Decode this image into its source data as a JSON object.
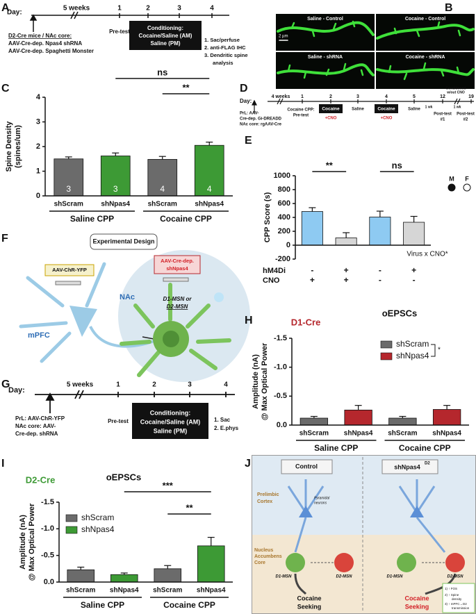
{
  "panel_labels": [
    "A",
    "B",
    "C",
    "D",
    "E",
    "F",
    "G",
    "H",
    "I",
    "J"
  ],
  "diagrams": {
    "A": [
      "Day:",
      "5 weeks",
      "1",
      "2",
      "3",
      "4",
      "D2-Cre mice / NAc core:",
      "AAV-Cre-dep. Npas4 shRNA",
      "AAV-Cre-dep. Spaghetti Monster",
      "Pre-test",
      "Conditioning:",
      "Cocaine/Saline (AM)",
      "Saline (PM)",
      "1. Sac/perfuse",
      "2. anti-FLAG IHC",
      "3. Dendritic spine",
      "analysis"
    ],
    "B": [
      "Saline - Control",
      "Cocaine - Control",
      "Saline - shRNA",
      "Cocaine - shRNA",
      "2 µm"
    ],
    "D": [
      "Day:",
      "4 weeks",
      "1",
      "2",
      "3",
      "4",
      "5",
      "12",
      "19",
      "PrL: AAV-",
      "Cre-dep. Gi-DREADD",
      "NAc core: rgAAV-Cre",
      "Cocaine CPP:",
      "Pre-test",
      "Cocaine",
      "+CNO",
      "Saline",
      "Cocaine",
      "+CNO",
      "Saline",
      "1 wk",
      "Post-test",
      "#1",
      "Conditioned",
      "w/out CNO",
      "1 wk",
      "Post-test",
      "#2"
    ],
    "F": [
      "Experimental Design",
      "AAV-ChR-YFP",
      "mPFC",
      "AAV-Cre-dep.",
      "shNpas4",
      "NAc",
      "D1-MSN or",
      "D2-MSN"
    ],
    "G": [
      "Day:",
      "5 weeks",
      "1",
      "2",
      "3",
      "4",
      "PrL: AAV-ChR-YFP",
      "NAc core: AAV-",
      "Cre-dep. shRNA",
      "Pre-test",
      "Conditioning:",
      "Cocaine/Saline (AM)",
      "Saline (PM)",
      "1. Sac",
      "2. E.phys"
    ],
    "J": [
      "Control",
      "shNpas4",
      "D2",
      "Prelimbic",
      "Cortex",
      "Pyramidal",
      "neurons",
      "Nucleus",
      "Accumbens",
      "Core",
      "D1-MSN",
      "D2-MSN",
      "D1-MSN",
      "D2-MSN",
      "Cocaine",
      "Seeking",
      "Cocaine",
      "Seeking",
      "1) ↑ FOS",
      "2) ↑ Spine",
      "density",
      "3) ↑ mPFC→D2",
      "transmission"
    ]
  },
  "chart_data": [
    {
      "type": "bar",
      "ylabel": [
        "Spine Density",
        "(spines/um)"
      ],
      "categories": [
        "shScram",
        "shNpas4",
        "shScram",
        "shNpas4"
      ],
      "groups": [
        "Saline CPP",
        "Cocaine CPP"
      ],
      "values": [
        1.5,
        1.62,
        1.48,
        2.05
      ],
      "errors": [
        0.08,
        0.12,
        0.12,
        0.13
      ],
      "colors": [
        "#6b6b6b",
        "#3d9a35",
        "#6b6b6b",
        "#3d9a35"
      ],
      "bar_labels": [
        "3",
        "3",
        "4",
        "4"
      ],
      "ylim": [
        0,
        4
      ],
      "yticks": [
        0,
        1,
        2,
        3,
        4
      ],
      "annotations": [
        "ns",
        "**"
      ]
    },
    {
      "type": "bar",
      "ylabel": "CPP Score (s)",
      "values": [
        485,
        105,
        405,
        330
      ],
      "errors": [
        55,
        75,
        85,
        85
      ],
      "colors": [
        "#8ecaf2",
        "#d6d6d6",
        "#8ecaf2",
        "#d6d6d6"
      ],
      "ylim": [
        -200,
        1000
      ],
      "yticks": [
        -200,
        0,
        200,
        400,
        600,
        800,
        1000
      ],
      "conditions": [
        {
          "name": "hM4Di",
          "values": [
            "-",
            "+",
            "-",
            "+"
          ]
        },
        {
          "name": "CNO",
          "values": [
            "+",
            "+",
            "-",
            "-"
          ]
        }
      ],
      "legend": [
        "M",
        "F"
      ],
      "annotations": [
        "**",
        "ns",
        "Virus x CNO*"
      ]
    },
    {
      "type": "bar",
      "title": "oEPSCs",
      "subtitle": "D1-Cre",
      "subtitle_color": "#b5272d",
      "ylabel": [
        "Amplitude (nA)",
        "@ Max Optical Power"
      ],
      "categories": [
        "shScram",
        "shNpas4",
        "shScram",
        "shNpas4"
      ],
      "groups": [
        "Saline CPP",
        "Cocaine CPP"
      ],
      "values": [
        -0.12,
        -0.26,
        -0.12,
        -0.27
      ],
      "errors": [
        0.03,
        0.08,
        0.03,
        0.07
      ],
      "colors": [
        "#6b6b6b",
        "#b5272d",
        "#6b6b6b",
        "#b5272d"
      ],
      "legend": [
        {
          "name": "shScram",
          "color": "#6b6b6b"
        },
        {
          "name": "shNpas4",
          "color": "#b5272d"
        }
      ],
      "ylim": [
        0,
        -1.5
      ],
      "yticks": [
        {
          "value": 0,
          "label": "0.0"
        },
        -0.5,
        {
          "value": -1,
          "label": "-1.0"
        },
        -1.5
      ],
      "annotations": [
        "*"
      ]
    },
    {
      "type": "bar",
      "title": "oEPSCs",
      "subtitle": "D2-Cre",
      "subtitle_color": "#3d9a35",
      "ylabel": [
        "Amplitude (nA)",
        "@ Max Optical Power"
      ],
      "categories": [
        "shScram",
        "shNpas4",
        "shScram",
        "shNpas4"
      ],
      "groups": [
        "Saline CPP",
        "Cocaine CPP"
      ],
      "values": [
        -0.23,
        -0.14,
        -0.25,
        -0.68
      ],
      "errors": [
        0.05,
        0.03,
        0.06,
        0.16
      ],
      "colors": [
        "#6b6b6b",
        "#3d9a35",
        "#6b6b6b",
        "#3d9a35"
      ],
      "legend": [
        {
          "name": "shScram",
          "color": "#6b6b6b"
        },
        {
          "name": "shNpas4",
          "color": "#3d9a35"
        }
      ],
      "ylim": [
        0,
        -1.5
      ],
      "yticks": [
        {
          "value": 0,
          "label": "0.0"
        },
        -0.5,
        {
          "value": -1,
          "label": "-1.0"
        },
        -1.5
      ],
      "annotations": [
        "***",
        "**"
      ]
    }
  ]
}
